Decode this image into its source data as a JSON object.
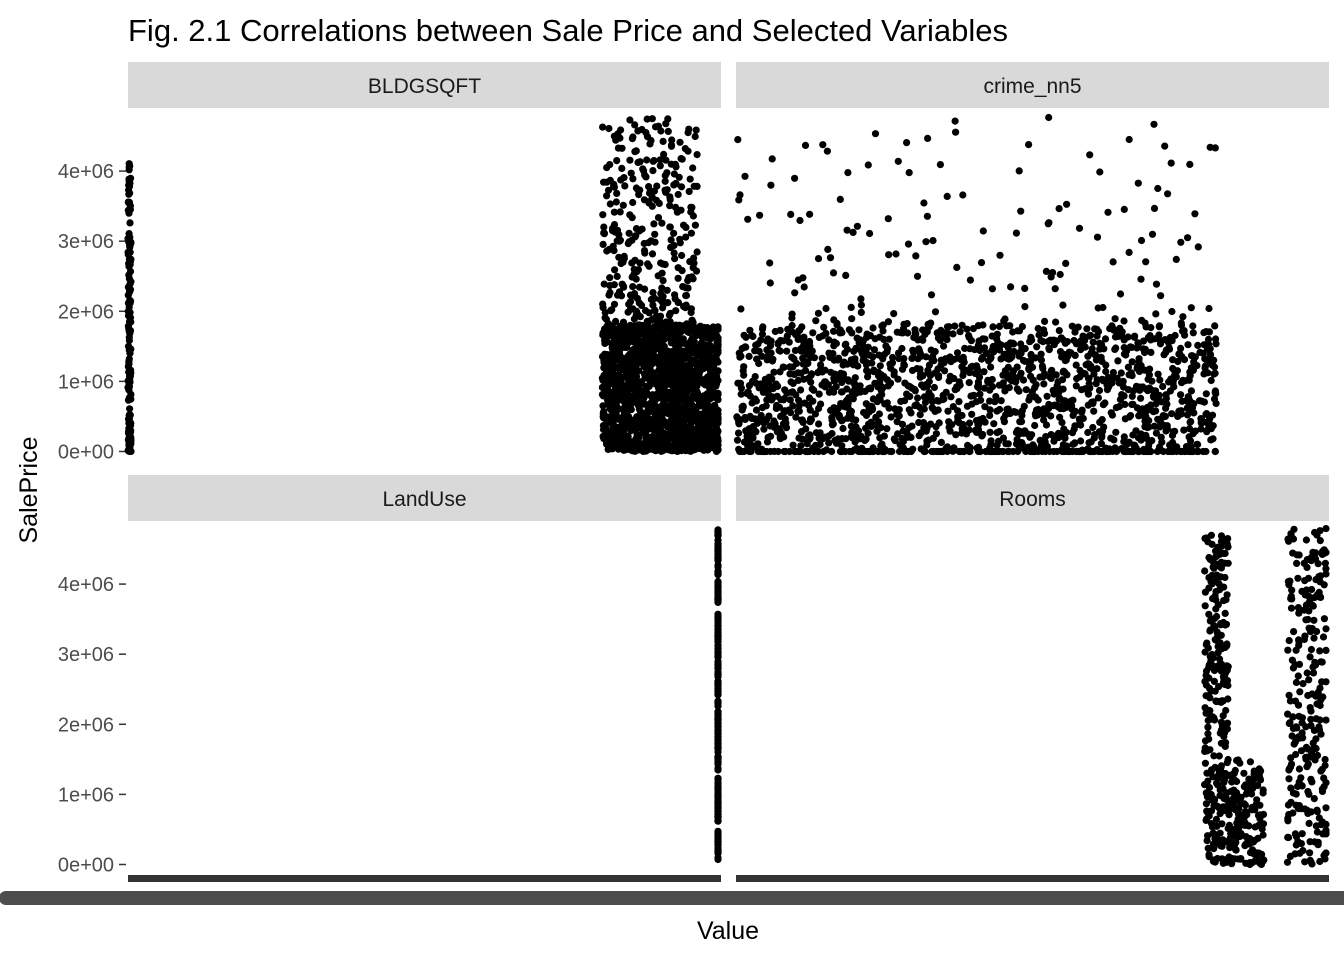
{
  "chart_data": {
    "type": "scatter",
    "title": "Fig. 2.1 Correlations between Sale Price and Selected Variables",
    "xlabel": "Value",
    "ylabel": "SalePrice",
    "ylim": [
      -150000,
      4900000
    ],
    "y_ticks": [
      0,
      1000000,
      2000000,
      3000000,
      4000000
    ],
    "y_tick_labels": [
      "0e+00",
      "1e+06",
      "2e+06",
      "3e+06",
      "4e+06"
    ],
    "facet_layout": "2x2",
    "grid": false,
    "colors": {
      "point": "#000000",
      "strip": "#d9d9d9",
      "axis": "#333333"
    },
    "facets": [
      {
        "name": "BLDGSQFT",
        "note": "x tick labels not readable; points concentrated at right of panel",
        "point_clusters": [
          {
            "x_frac": [
              0.0,
              0.005
            ],
            "y": [
              0,
              4300000
            ],
            "density": "sparse"
          },
          {
            "x_frac": [
              0.8,
              1.0
            ],
            "y": [
              0,
              1800000
            ],
            "density": "dense"
          },
          {
            "x_frac": [
              0.8,
              0.96
            ],
            "y": [
              1800000,
              4800000
            ],
            "density": "medium"
          }
        ]
      },
      {
        "name": "crime_nn5",
        "note": "x tick labels not readable",
        "point_clusters": [
          {
            "x_frac": [
              0.0,
              0.81
            ],
            "y": [
              0,
              1800000
            ],
            "density": "dense"
          },
          {
            "x_frac": [
              0.0,
              0.81
            ],
            "y": [
              1800000,
              4800000
            ],
            "density": "sparse"
          },
          {
            "x_frac": [
              0.0,
              0.81
            ],
            "y": [
              0,
              0
            ],
            "density": "line"
          }
        ]
      },
      {
        "name": "LandUse",
        "note": "x tick labels not readable; single vertical column of points",
        "point_clusters": [
          {
            "x_frac": [
              0.999,
              1.0
            ],
            "y": [
              0,
              4800000
            ],
            "density": "column"
          }
        ]
      },
      {
        "name": "Rooms",
        "note": "x tick labels not readable; points in discrete columns",
        "point_clusters": [
          {
            "x_frac": [
              0.79,
              0.83
            ],
            "y": [
              0,
              4700000
            ],
            "density": "column"
          },
          {
            "x_frac": [
              0.83,
              0.89
            ],
            "y": [
              0,
              1500000
            ],
            "density": "sparse"
          },
          {
            "x_frac": [
              0.93,
              1.0
            ],
            "y": [
              0,
              4800000
            ],
            "density": "column"
          }
        ]
      }
    ]
  }
}
